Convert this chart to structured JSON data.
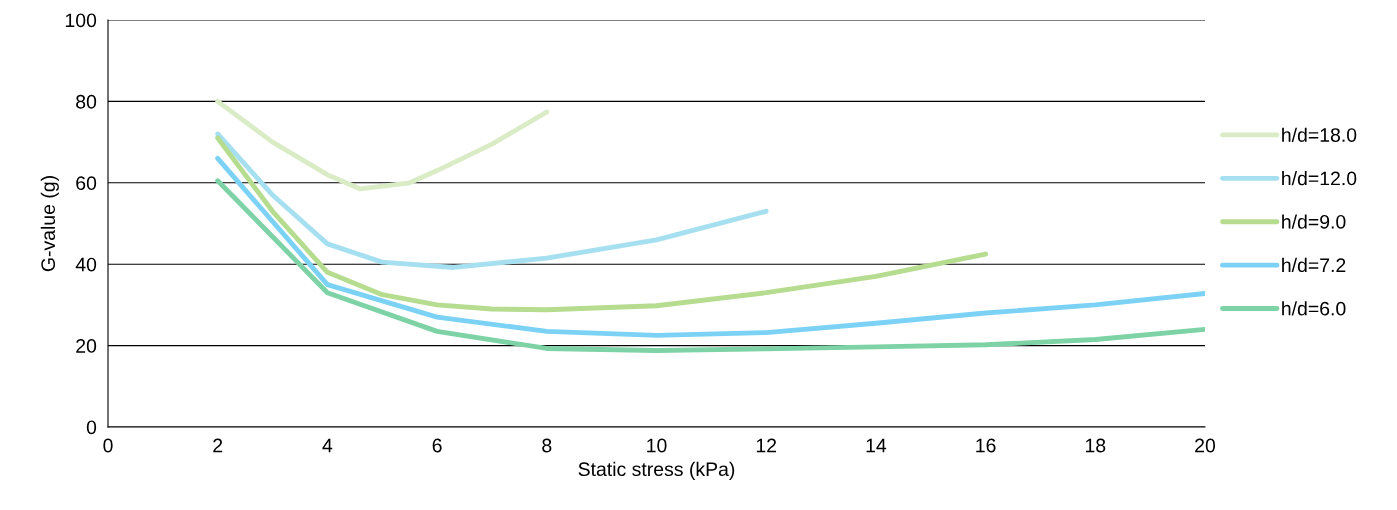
{
  "chart_data": {
    "type": "line",
    "xlabel": "Static stress (kPa)",
    "ylabel": "G-value (g)",
    "xlim": [
      0,
      20
    ],
    "xticks": [
      0,
      2,
      4,
      6,
      8,
      10,
      12,
      14,
      16,
      18,
      20
    ],
    "ylim": [
      0,
      100
    ],
    "yticks": [
      0,
      20,
      40,
      60,
      80,
      100
    ],
    "grid": "y",
    "legend": "right",
    "marker": "none",
    "line_style": "solid",
    "series": [
      {
        "name": "h/d=18.0",
        "color": "#d9ecc6",
        "x": [
          2,
          3,
          4,
          4.6,
          5.5,
          6,
          7,
          8
        ],
        "values": [
          80,
          70,
          62,
          58.5,
          60,
          63,
          69.5,
          77.4
        ]
      },
      {
        "name": "h/d=12.0",
        "color": "#a6e0f0",
        "x": [
          2,
          3,
          4,
          5,
          6.3,
          8,
          10,
          12
        ],
        "values": [
          72,
          57,
          45,
          40.5,
          39.2,
          41.5,
          46,
          53
        ]
      },
      {
        "name": "h/d=9.0",
        "color": "#b5dc8f",
        "x": [
          2,
          3,
          4,
          5,
          6,
          7,
          8,
          10,
          12,
          14,
          16
        ],
        "values": [
          71,
          53,
          38,
          32.5,
          30,
          29,
          28.8,
          29.8,
          33,
          37,
          42.5
        ]
      },
      {
        "name": "h/d=7.2",
        "color": "#7cd2f5",
        "x": [
          2,
          4,
          6,
          8,
          10,
          12,
          14,
          16,
          18,
          20
        ],
        "values": [
          66,
          35,
          27,
          23.5,
          22.5,
          23.2,
          25.5,
          28,
          30,
          32.8
        ]
      },
      {
        "name": "h/d=6.0",
        "color": "#7dd3a6",
        "x": [
          2,
          4,
          6,
          8,
          10,
          12,
          14,
          16,
          18,
          20
        ],
        "values": [
          60.5,
          33,
          23.5,
          19.3,
          18.8,
          19.2,
          19.7,
          20.2,
          21.5,
          24
        ]
      }
    ]
  }
}
